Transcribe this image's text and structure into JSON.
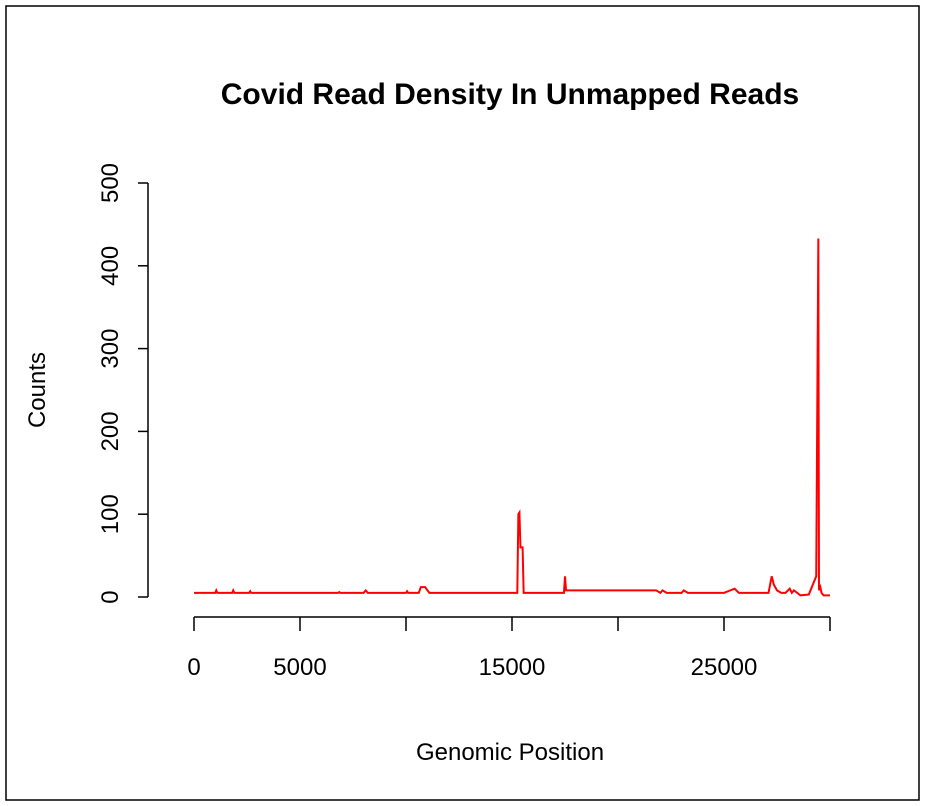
{
  "chart_data": {
    "type": "line",
    "title": "Covid Read Density In Unmapped Reads",
    "x_label": "Genomic Position",
    "y_label": "Counts",
    "x": [
      0,
      1000,
      1050,
      1100,
      1800,
      1850,
      1900,
      2600,
      2650,
      2700,
      6800,
      6850,
      6900,
      8000,
      8100,
      8200,
      10000,
      10050,
      10100,
      10600,
      10700,
      10900,
      11100,
      15250,
      15300,
      15350,
      15400,
      15500,
      15550,
      15600,
      17450,
      17500,
      17550,
      17600,
      21800,
      22000,
      22100,
      22300,
      23000,
      23100,
      23300,
      25000,
      25300,
      25500,
      25700,
      27100,
      27250,
      27350,
      27500,
      27700,
      27900,
      28100,
      28200,
      28300,
      28600,
      29000,
      29350,
      29450,
      29480,
      29520,
      29600,
      29700,
      29800,
      30000
    ],
    "series": [
      {
        "name": "Counts",
        "color": "#ff0000",
        "values": [
          5,
          5,
          8,
          5,
          5,
          8,
          5,
          5,
          7,
          5,
          5,
          6,
          5,
          5,
          8,
          5,
          5,
          7,
          5,
          5,
          12,
          12,
          5,
          5,
          100,
          102,
          60,
          60,
          5,
          5,
          5,
          25,
          8,
          8,
          8,
          5,
          8,
          5,
          5,
          8,
          5,
          5,
          8,
          10,
          5,
          5,
          25,
          15,
          8,
          5,
          5,
          10,
          5,
          8,
          2,
          3,
          25,
          433,
          8,
          15,
          5,
          2,
          2,
          2
        ]
      }
    ],
    "xlim": [
      0,
      30000
    ],
    "ylim": [
      0,
      500
    ],
    "xticks": [
      0,
      5000,
      15000,
      25000
    ],
    "xminor_ticks": [
      10000,
      20000,
      30000
    ],
    "yticks": [
      0,
      100,
      200,
      300,
      400,
      500
    ]
  }
}
